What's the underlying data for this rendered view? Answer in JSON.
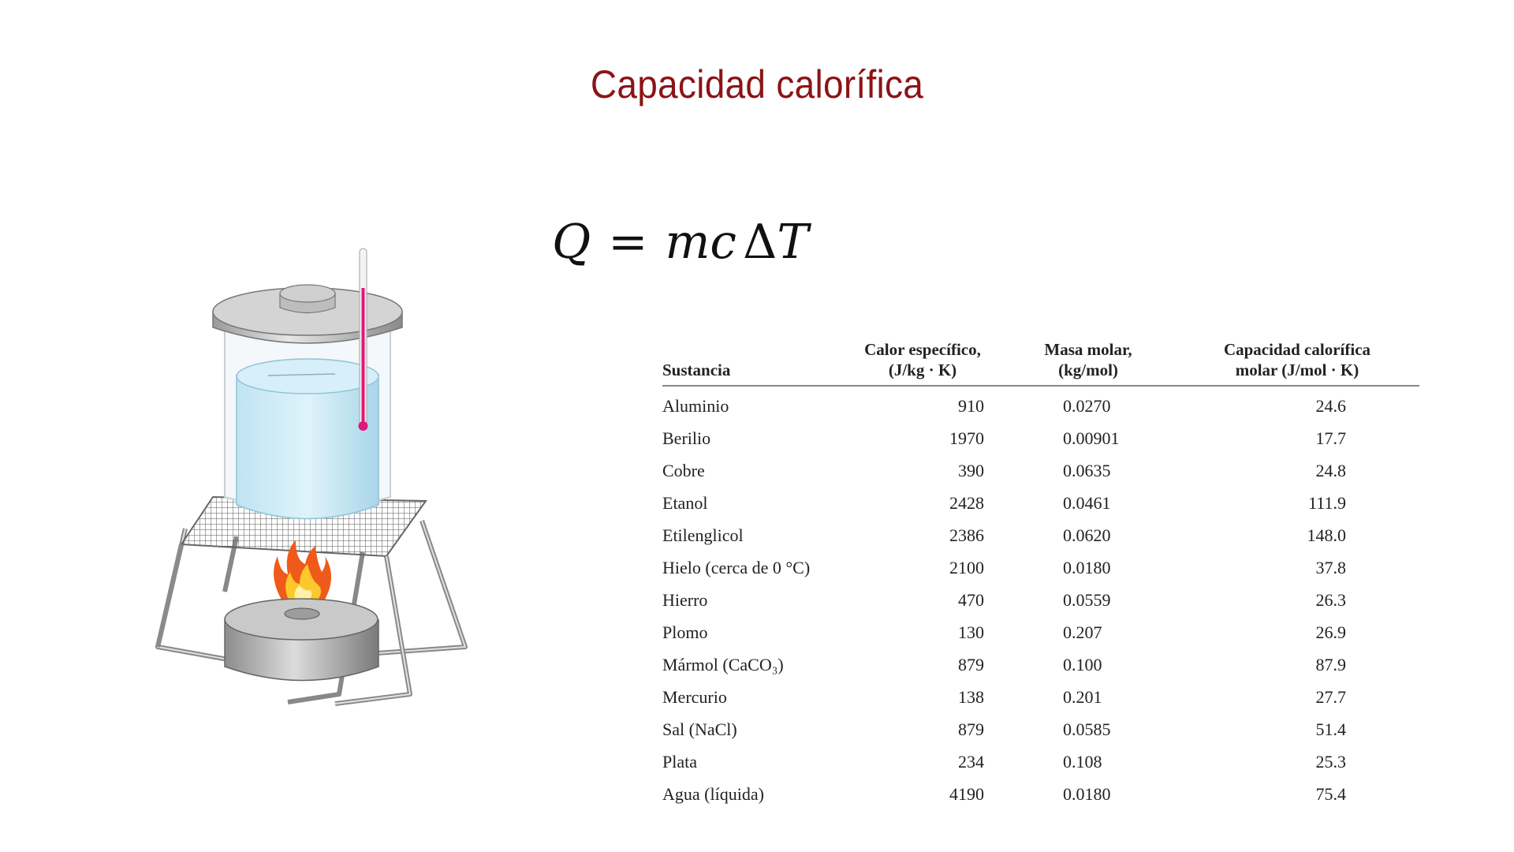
{
  "slide": {
    "title": "Capacidad calorífica"
  },
  "formula": {
    "Q": "Q",
    "equals": "=",
    "mc": "mc",
    "delta": "Δ",
    "T": "T"
  },
  "table": {
    "headers": {
      "substance": "Sustancia",
      "specific_heat_line1": "Calor específico,",
      "specific_heat_line2": "(J/kg · K)",
      "molar_mass_line1": "Masa molar,",
      "molar_mass_line2": "(kg/mol)",
      "molar_heat_line1": "Capacidad calorífica",
      "molar_heat_line2": "molar (J/mol · K)"
    },
    "rows": [
      {
        "name": "Aluminio",
        "c": "910",
        "M": "0.0270",
        "C": "24.6"
      },
      {
        "name": "Berilio",
        "c": "1970",
        "M": "0.00901",
        "C": "17.7"
      },
      {
        "name": "Cobre",
        "c": "390",
        "M": "0.0635",
        "C": "24.8"
      },
      {
        "name": "Etanol",
        "c": "2428",
        "M": "0.0461",
        "C": "111.9"
      },
      {
        "name": "Etilenglicol",
        "c": "2386",
        "M": "0.0620",
        "C": "148.0"
      },
      {
        "name": "Hielo (cerca de 0 °C)",
        "c": "2100",
        "M": "0.0180",
        "C": "37.8"
      },
      {
        "name": "Hierro",
        "c": "470",
        "M": "0.0559",
        "C": "26.3"
      },
      {
        "name": "Plomo",
        "c": "130",
        "M": "0.207",
        "C": "26.9"
      },
      {
        "name": "Mármol (CaCO₃)",
        "c": "879",
        "M": "0.100",
        "C": "87.9"
      },
      {
        "name": "Mercurio",
        "c": "138",
        "M": "0.201",
        "C": "27.7"
      },
      {
        "name": "Sal (NaCl)",
        "c": "879",
        "M": "0.0585",
        "C": "51.4"
      },
      {
        "name": "Plata",
        "c": "234",
        "M": "0.108",
        "C": "25.3"
      },
      {
        "name": "Agua (líquida)",
        "c": "4190",
        "M": "0.0180",
        "C": "75.4"
      }
    ]
  }
}
